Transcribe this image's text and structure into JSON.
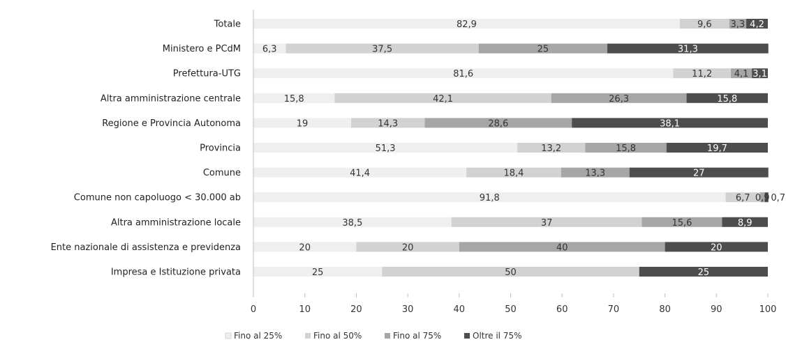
{
  "chart_data": {
    "type": "bar",
    "orientation": "horizontal",
    "stacked": true,
    "xlim": [
      0,
      100
    ],
    "xticks": [
      0,
      10,
      20,
      30,
      40,
      50,
      60,
      70,
      80,
      90,
      100
    ],
    "grid": false,
    "legend_position": "bottom",
    "categories": [
      "Totale",
      "Ministero e PCdM",
      "Prefettura-UTG",
      "Altra amministrazione  centrale",
      "Regione e Provincia Autonoma",
      "Provincia",
      "Comune",
      "Comune non capoluogo < 30.000 ab",
      "Altra amministrazione  locale",
      "Ente nazionale di assistenza e previdenza",
      "Impresa e Istituzione privata"
    ],
    "series": [
      {
        "name": "Fino al 25%",
        "color": "#efefef",
        "values": [
          82.9,
          6.3,
          81.6,
          15.8,
          19,
          51.3,
          41.4,
          91.8,
          38.5,
          20,
          25
        ],
        "labels": [
          "82,9",
          "6,3",
          "81,6",
          "15,8",
          "19",
          "51,3",
          "41,4",
          "91,8",
          "38,5",
          "20",
          "25"
        ]
      },
      {
        "name": "Fino al 50%",
        "color": "#d2d2d2",
        "values": [
          9.6,
          37.5,
          11.2,
          42.1,
          14.3,
          13.2,
          18.4,
          6.7,
          37,
          20,
          50
        ],
        "labels": [
          "9,6",
          "37,5",
          "11,2",
          "42,1",
          "14,3",
          "13,2",
          "18,4",
          "6,7",
          "37",
          "20",
          "50"
        ]
      },
      {
        "name": "Fino al 75%",
        "color": "#a6a6a6",
        "values": [
          3.3,
          25,
          4.1,
          26.3,
          28.6,
          15.8,
          13.3,
          0.9,
          15.6,
          40,
          0
        ],
        "labels": [
          "3,3",
          "25",
          "4,1",
          "26,3",
          "28,6",
          "15,8",
          "13,3",
          "0,9",
          "15,6",
          "40",
          ""
        ]
      },
      {
        "name": "Oltre il 75%",
        "color": "#4d4d4d",
        "values": [
          4.2,
          31.3,
          3.1,
          15.8,
          38.1,
          19.7,
          27,
          0.7,
          8.9,
          20,
          25
        ],
        "labels": [
          "4,2",
          "31,3",
          "3,1",
          "15,8",
          "38,1",
          "19,7",
          "27",
          "0,7",
          "8,9",
          "20",
          "25"
        ]
      }
    ]
  }
}
